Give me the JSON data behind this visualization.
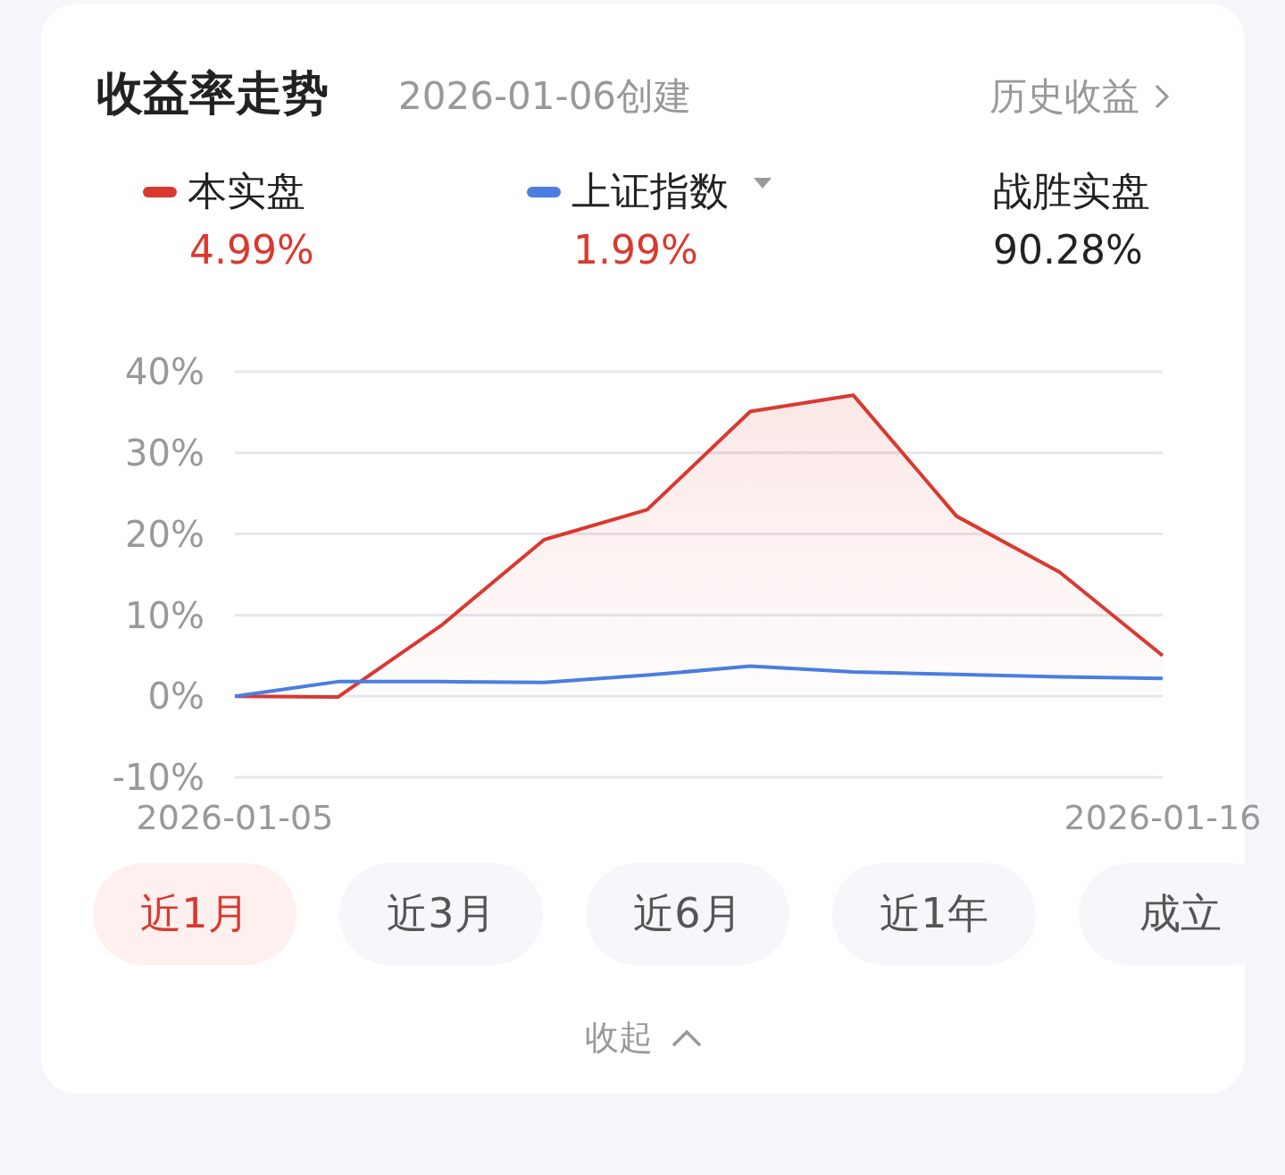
{
  "chart_data": {
    "type": "line",
    "title": "收益率走势",
    "subtitle": "2026-01-06创建",
    "categories": [
      "2026-01-05",
      null,
      null,
      null,
      null,
      null,
      null,
      null,
      null,
      "2026-01-16"
    ],
    "series": [
      {
        "name": "本实盘",
        "type": "area",
        "color": "#d9392f",
        "values": [
          0,
          -0.1,
          8.7,
          19.3,
          23.0,
          35.1,
          37.1,
          22.2,
          15.3,
          5.0
        ]
      },
      {
        "name": "上证指数",
        "type": "line",
        "color": "#4a7ee0",
        "values": [
          0,
          1.8,
          1.8,
          1.7,
          2.6,
          3.7,
          3.0,
          2.7,
          2.4,
          2.2
        ]
      }
    ],
    "ylim": [
      -10,
      40
    ],
    "yticks": [
      {
        "value": -10,
        "label": "-10%"
      },
      {
        "value": 0,
        "label": "0%"
      },
      {
        "value": 10,
        "label": "10%"
      },
      {
        "value": 20,
        "label": "20%"
      },
      {
        "value": 30,
        "label": "30%"
      },
      {
        "value": 40,
        "label": "40%"
      }
    ],
    "grid": "y",
    "legend": "top",
    "marker": "none",
    "line_style": "solid",
    "annotations": [
      "4.99%",
      "1.99%",
      "战胜实盘",
      "90.28%",
      "历史收益",
      "近1月",
      "近3月",
      "近6月",
      "近1年",
      "成立",
      "收起"
    ]
  }
}
